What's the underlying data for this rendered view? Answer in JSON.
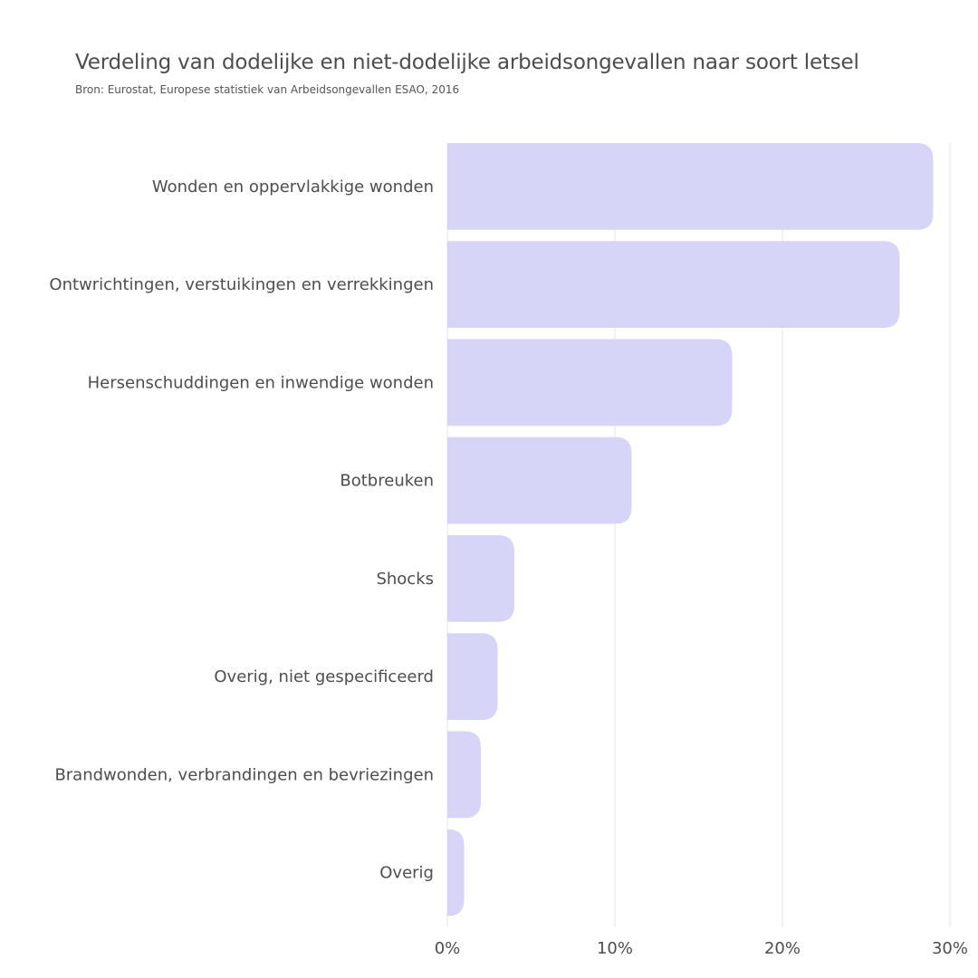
{
  "chart_data": {
    "type": "bar",
    "orientation": "horizontal",
    "title": "Verdeling van dodelijke en niet-dodelijke arbeidsongevallen naar soort letsel",
    "subtitle": "Bron: Eurostat, Europese statistiek van Arbeidsongevallen ESAO, 2016",
    "categories": [
      "Wonden en oppervlakkige wonden",
      "Ontwrichtingen, verstuikingen en verrekkingen",
      "Hersenschuddingen en inwendige wonden",
      "Botbreuken",
      "Shocks",
      "Overig, niet gespecificeerd",
      "Brandwonden, verbrandingen en bevriezingen",
      "Overig"
    ],
    "values": [
      29,
      27,
      17,
      11,
      4,
      3,
      2,
      1
    ],
    "unit": "%",
    "xlim": [
      0,
      30
    ],
    "x_ticks": [
      "0%",
      "10%",
      "20%",
      "30%"
    ],
    "grid": "vertical",
    "bar_color": "#d6d4f7",
    "gridline_color": "#e6e6e6",
    "text_color": "#4d4d4d"
  }
}
